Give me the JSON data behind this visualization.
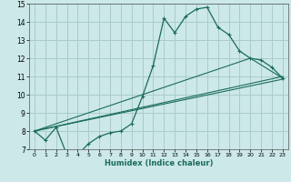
{
  "xlabel": "Humidex (Indice chaleur)",
  "bg_color": "#cce8e8",
  "grid_color": "#aacccc",
  "line_color": "#1a6b5a",
  "xlim": [
    -0.5,
    23.5
  ],
  "ylim": [
    7,
    15
  ],
  "xticks": [
    0,
    1,
    2,
    3,
    4,
    5,
    6,
    7,
    8,
    9,
    10,
    11,
    12,
    13,
    14,
    15,
    16,
    17,
    18,
    19,
    20,
    21,
    22,
    23
  ],
  "yticks": [
    7,
    8,
    9,
    10,
    11,
    12,
    13,
    14,
    15
  ],
  "main_x": [
    0,
    1,
    2,
    3,
    4,
    5,
    6,
    7,
    8,
    9,
    10,
    11,
    12,
    13,
    14,
    15,
    16,
    17,
    18,
    19,
    20,
    21,
    22,
    23
  ],
  "main_y": [
    8.0,
    7.5,
    8.2,
    6.7,
    6.7,
    7.3,
    7.7,
    7.9,
    8.0,
    8.4,
    9.9,
    11.6,
    14.2,
    13.4,
    14.3,
    14.7,
    14.8,
    13.7,
    13.3,
    12.4,
    12.0,
    11.9,
    11.5,
    10.9
  ],
  "line2_x": [
    0,
    23
  ],
  "line2_y": [
    8.0,
    11.0
  ],
  "line3_x": [
    0,
    23
  ],
  "line3_y": [
    8.0,
    10.85
  ],
  "line4_x": [
    0,
    20,
    23
  ],
  "line4_y": [
    8.0,
    12.0,
    10.9
  ]
}
